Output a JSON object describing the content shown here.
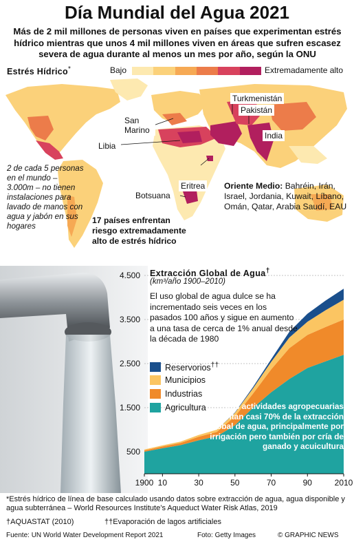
{
  "title": "Día Mundial del Agua 2021",
  "subtitle": "Más de 2 mil millones de personas viven en países que experimentan estrés hídrico mientras que unos 4 mil millones viven en áreas que sufren escasez severa de agua durante al menos un mes por año, según la ONU",
  "map": {
    "legend_title": "Estrés Hídrico",
    "legend_title_mark": "*",
    "legend_low": "Bajo",
    "legend_high": "Extremadamente alto",
    "scale_colors": [
      "#fde9b0",
      "#fbd17a",
      "#f6a954",
      "#ec7c4a",
      "#d8425d",
      "#b11f5e"
    ],
    "labels": {
      "san_marino": "San Marino",
      "libia": "Libia",
      "turkmenistan": "Turkmenistán",
      "pakistan": "Pakistán",
      "india": "India",
      "eritrea": "Eritrea",
      "botsuana": "Botsuana"
    },
    "middle_east_title": "Oriente Medio:",
    "middle_east_list": " Bahréin, Irán, Israel, Jordania, Kuwait, Líbano, Omán, Qatar, Arabia Saudí, EAU",
    "left_note": "2 de cada 5 personas en el mundo – 3.000m – no tienen instalaciones para lavado de manos con agua y jabón en sus hogares",
    "mid_note": "17 países enfrentan riesgo extremadamente alto de estrés hídrico"
  },
  "chart": {
    "title": "Extracción Global de Agua",
    "title_mark": "†",
    "subtitle": "(km³/año 1900–2010)",
    "description": "El uso global de agua dulce se ha incrementado seis veces en los pasados 100 años y sigue en aumento a una tasa de cerca de 1% anual desde la década de 1980",
    "legend": {
      "reservorios": "Reservorios",
      "reservorios_mark": "††",
      "municipios": "Municipios",
      "industrias": "Industrias",
      "agricultura": "Agricultura"
    },
    "agri_note": "Las actividades agropecuarias representan casi 70% de la extracción global de agua, principalmente por irrigación pero también por cría de ganado y acuicultura"
  },
  "chart_data": {
    "type": "area",
    "stacked": true,
    "x": [
      1900,
      1910,
      1920,
      1930,
      1940,
      1950,
      1960,
      1970,
      1980,
      1990,
      2000,
      2010
    ],
    "x_tick_labels": [
      "1900",
      "10",
      "30",
      "50",
      "70",
      "90",
      "2010"
    ],
    "x_tick_values": [
      1900,
      1910,
      1930,
      1950,
      1970,
      1990,
      2010
    ],
    "y_ticks": [
      "500",
      "1.500",
      "2.500",
      "3.500",
      "4.500"
    ],
    "y_tick_values": [
      500,
      1500,
      2500,
      3500,
      4500
    ],
    "ylim": [
      0,
      4500
    ],
    "series": [
      {
        "name": "Agricultura",
        "color": "#1fa3a0",
        "values": [
          500,
          580,
          650,
          760,
          850,
          1100,
          1500,
          1850,
          2150,
          2400,
          2550,
          2700
        ]
      },
      {
        "name": "Industrias",
        "color": "#f08a2a",
        "values": [
          30,
          40,
          50,
          80,
          100,
          200,
          320,
          520,
          700,
          750,
          780,
          800
        ]
      },
      {
        "name": "Municipios",
        "color": "#fbc562",
        "values": [
          20,
          25,
          30,
          40,
          50,
          80,
          120,
          170,
          240,
          300,
          380,
          450
        ]
      },
      {
        "name": "Reservorios",
        "color": "#1a4f8c",
        "values": [
          0,
          0,
          0,
          0,
          0,
          10,
          30,
          60,
          130,
          180,
          220,
          250
        ]
      }
    ]
  },
  "footnotes": {
    "stress_note": "*Estrés hídrico de línea de base calculado usando datos sobre extracción de agua, agua disponible y agua subterránea – World Resources Institute’s Aqueduct Water Risk Atlas, 2019",
    "aquastat": "†AQUASTAT (2010)",
    "evaporacion": "††Evaporación de lagos artificiales",
    "source": "Fuente: UN World Water Development Report 2021",
    "photo": "Foto: Getty Images",
    "brand": "© GRAPHIC NEWS"
  }
}
